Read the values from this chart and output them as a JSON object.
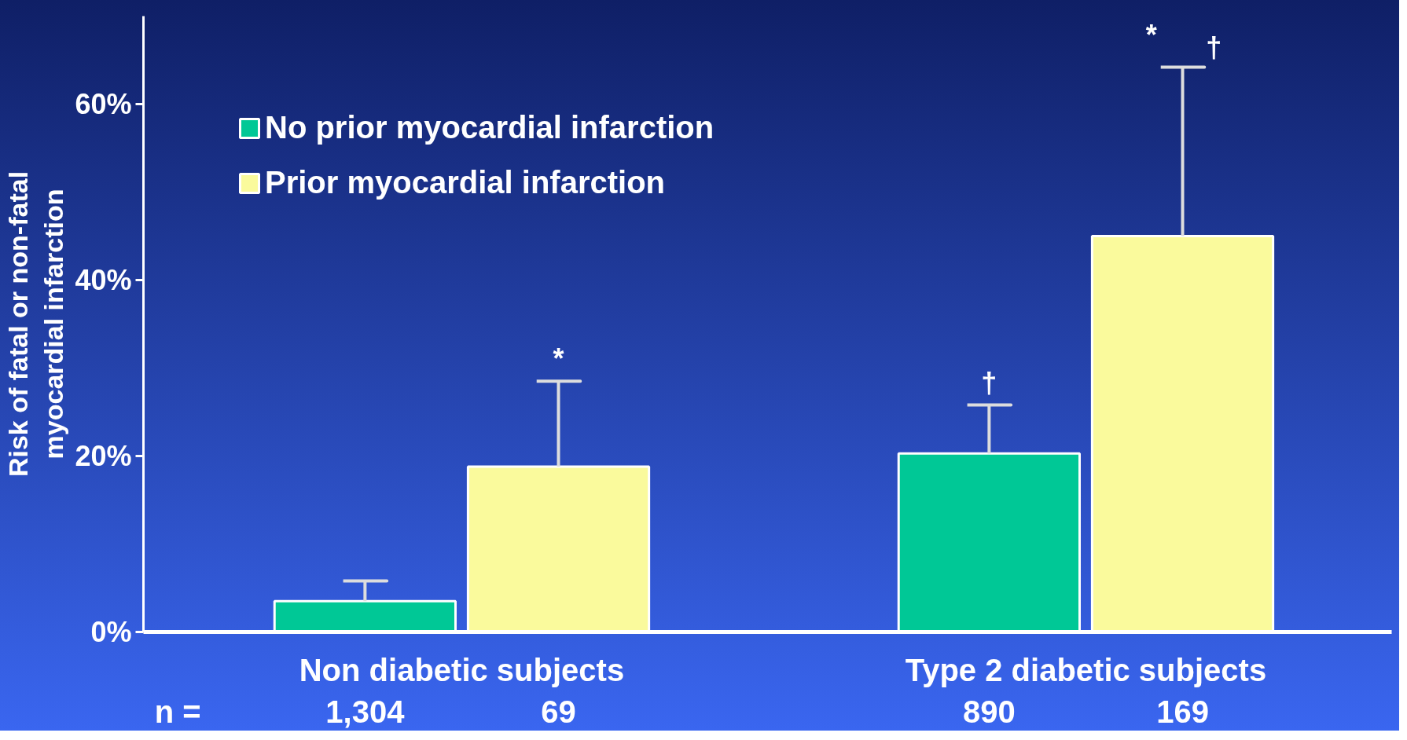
{
  "chart_data": {
    "type": "bar",
    "categories": [
      "Non diabetic subjects",
      "Type 2 diabetic subjects"
    ],
    "ylabel": "Risk of fatal or non-fatal\nmyocardial infarction",
    "series": [
      {
        "name": "No prior myocardial infarction",
        "color": "#00c896",
        "values": [
          3.5,
          20.3
        ],
        "errors": [
          [
            3.5,
            5.8
          ],
          [
            20.3,
            25.8
          ]
        ],
        "value_labels": [
          null,
          "†"
        ]
      },
      {
        "name": "Prior myocardial infarction",
        "color": "#fafa9c",
        "values": [
          18.8,
          45
        ],
        "errors": [
          [
            18.8,
            28.5
          ],
          [
            45,
            64.2
          ]
        ],
        "value_labels": [
          null,
          null
        ]
      }
    ],
    "ylim": [
      0,
      70
    ],
    "yticks": [
      {
        "value": 0,
        "label": "0%"
      },
      {
        "value": 20,
        "label": "20%"
      },
      {
        "value": 40,
        "label": "40%"
      },
      {
        "value": 60,
        "label": "60%"
      }
    ],
    "grid": false,
    "legend": "top left",
    "annotations": [
      "*",
      "*",
      "†",
      "n =",
      "1,304",
      "69",
      "890",
      "169"
    ]
  }
}
